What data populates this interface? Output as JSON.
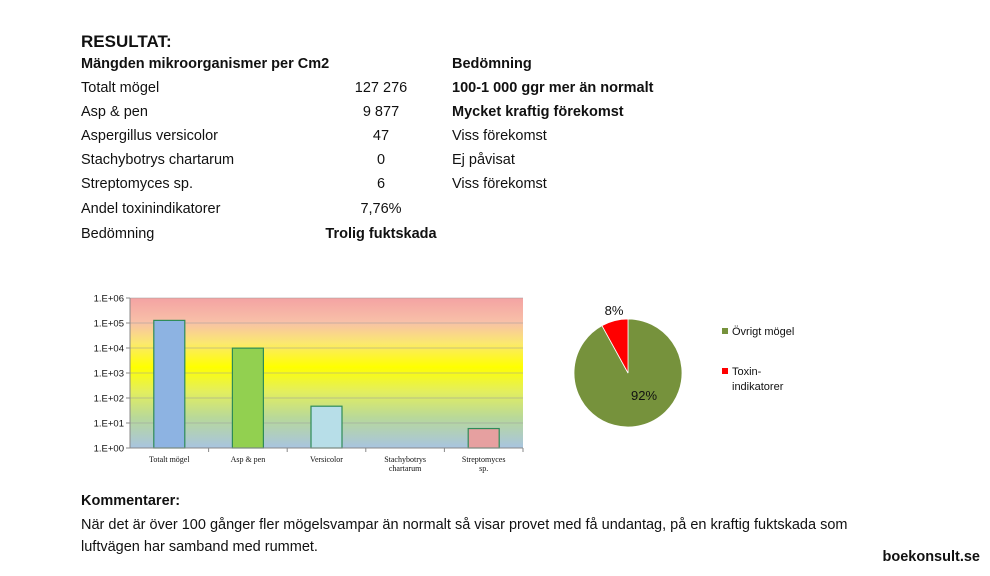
{
  "heading": "RESULTAT:",
  "table": {
    "col1_header": "Mängden mikroorganismer per Cm2",
    "col3_header": "Bedömning",
    "rows": [
      {
        "name": "Totalt mögel",
        "value": "127 276",
        "assessment": "100-1 000 ggr mer än normalt",
        "value_bold": false,
        "assessment_bold": true
      },
      {
        "name": "Asp & pen",
        "value": "9 877",
        "assessment": "Mycket kraftig förekomst",
        "value_bold": false,
        "assessment_bold": true
      },
      {
        "name": "Aspergillus versicolor",
        "value": "47",
        "assessment": "Viss förekomst",
        "value_bold": false,
        "assessment_bold": false
      },
      {
        "name": "Stachybotrys chartarum",
        "value": "0",
        "assessment": "Ej påvisat",
        "value_bold": false,
        "assessment_bold": false
      },
      {
        "name": "Streptomyces sp.",
        "value": "6",
        "assessment": "Viss förekomst",
        "value_bold": false,
        "assessment_bold": false
      },
      {
        "name": "Andel toxinindikatorer",
        "value": "7,76%",
        "assessment": "",
        "value_bold": false,
        "assessment_bold": false
      },
      {
        "name": "Bedömning",
        "value": "Trolig fuktskada",
        "assessment": "",
        "value_bold": true,
        "assessment_bold": false
      }
    ]
  },
  "chart_data": [
    {
      "type": "bar",
      "scale": "log",
      "categories": [
        "Totalt mögel",
        "Asp & pen",
        "Versicolor",
        "Stachybotrys chartarum",
        "Streptomyces sp."
      ],
      "values": [
        127276,
        9877,
        47,
        0,
        6
      ],
      "ytick_labels": [
        "1.E+00",
        "1.E+01",
        "1.E+02",
        "1.E+03",
        "1.E+04",
        "1.E+05",
        "1.E+06"
      ],
      "ylim": [
        1,
        1000000
      ],
      "bar_colors": [
        "#8db3e2",
        "#92d050",
        "#b7dee8",
        "#c0c0c0",
        "#e6a0a0"
      ],
      "background": "gradient red-yellow-green-blue",
      "grid": "horizontal"
    },
    {
      "type": "pie",
      "slices": [
        {
          "label": "Övrigt mögel",
          "value": 92,
          "color": "#76923c"
        },
        {
          "label": "Toxin-\nindikatorer",
          "value": 8,
          "color": "#ff0000"
        }
      ],
      "data_labels": [
        "92%",
        "8%"
      ],
      "legend_position": "right"
    }
  ],
  "comments": {
    "title": "Kommentarer:",
    "text": "När det är över 100 gånger fler mögelsvampar än normalt så visar provet med få undantag, på en kraftig fuktskada som luftvägen har samband med rummet."
  },
  "brand": "boekonsult.se"
}
